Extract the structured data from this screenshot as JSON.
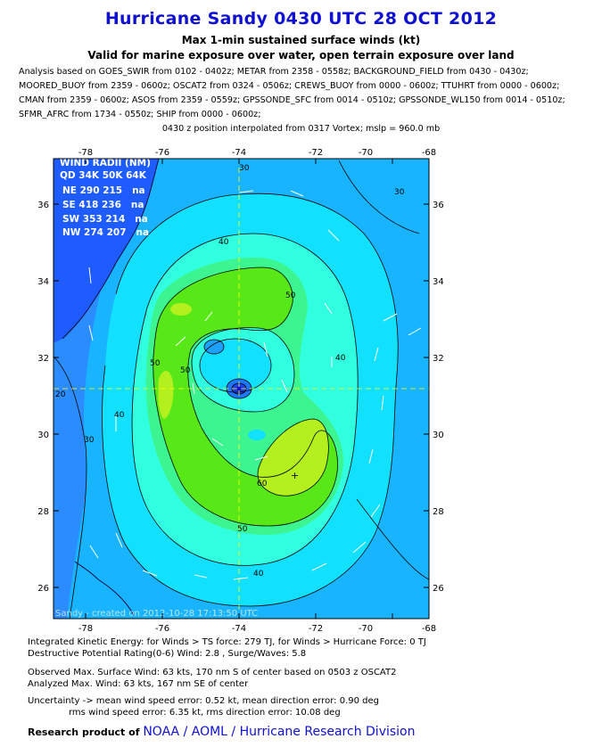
{
  "title": "Hurricane Sandy 0430 UTC 28 OCT 2012",
  "subtitle1": "Max 1-min sustained surface winds (kt)",
  "subtitle2": "Valid for marine exposure over water, open terrain exposure over land",
  "analysis_lines": [
    "Analysis based on GOES_SWIR from 0102 - 0402z; METAR from 2358 - 0558z; BACKGROUND_FIELD from 0430 - 0430z;",
    "MOORED_BUOY from 2359 - 0600z; OSCAT2 from 0324 - 0506z; CREWS_BUOY from 0000 - 0600z; TTUHRT from 0000 - 0600z;",
    "CMAN from 2359 - 0600z; ASOS from 2359 - 0559z; GPSSONDE_SFC from 0014 - 0510z; GPSSONDE_WL150 from 0014 - 0510z;",
    "SFMR_AFRC from 1734 - 0550z; SHIP from 0000 - 0600z;"
  ],
  "position_line": "0430 z position interpolated from 0317 Vortex; mslp = 960.0 mb",
  "map": {
    "lon_ticks": [
      "-78",
      "-76",
      "-74",
      "-72",
      "-70",
      "-68"
    ],
    "lat_ticks": [
      "36",
      "34",
      "32",
      "30",
      "28",
      "26"
    ],
    "wind_radii": {
      "header": "WIND RADII (NM)",
      "columns": "QD 34K 50K 64K",
      "rows": [
        "NE 290 215   na",
        "SE 418 236   na",
        "SW 353 214   na",
        "NW 274 207   na"
      ]
    },
    "contour_labels": [
      "30",
      "30",
      "30",
      "40",
      "40",
      "40",
      "40",
      "50",
      "50",
      "50",
      "50",
      "60",
      "20"
    ],
    "watermark": "Sandy - created on 2012-10-28 17:13:50 UTC",
    "colors": {
      "land": "#1e5cff",
      "band_10_20": "#2b8cff",
      "band_20_30": "#19b4ff",
      "band_30_40": "#12e0ff",
      "band_40_50": "#30ffe0",
      "band_50_55": "#3cf590",
      "band_55_60": "#58e818",
      "band_60_65": "#b4f01e",
      "grid": "#ffff00"
    }
  },
  "stats": {
    "ike": "Integrated Kinetic Energy: for Winds > TS force: 279 TJ, for Winds > Hurricane Force: 0 TJ",
    "dpr": "Destructive Potential Rating(0-6)  Wind: 2.8 , Surge/Waves: 5.8",
    "observed": "Observed Max. Surface Wind: 63 kts, 170 nm S of center based on 0503 z OSCAT2",
    "analyzed": "Analyzed Max. Wind: 63 kts, 167 nm  SE of center",
    "uncertainty1": "Uncertainty -> mean wind speed error: 0.52 kt, mean direction error: 0.90 deg",
    "uncertainty2": "rms wind speed error: 6.35 kt, rms direction error: 10.08 deg"
  },
  "credit": {
    "prefix": "Research product of",
    "org": "NOAA  /  AOML  /  Hurricane Research Division"
  }
}
